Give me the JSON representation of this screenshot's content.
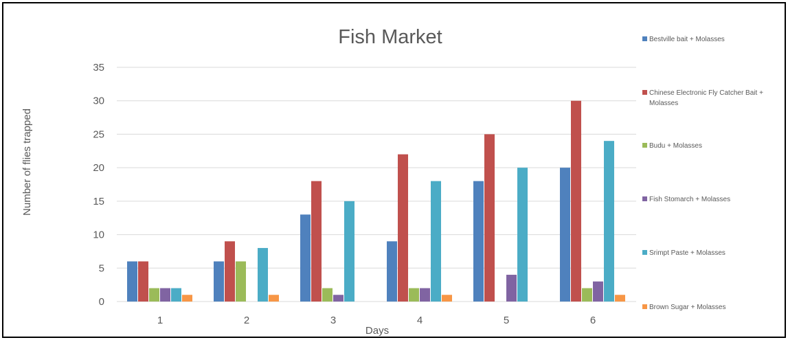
{
  "chart_data": {
    "type": "bar",
    "title": "Fish Market",
    "xlabel": "Days",
    "ylabel": "Number of flies trapped",
    "categories": [
      "1",
      "2",
      "3",
      "4",
      "5",
      "6"
    ],
    "ylim": [
      0,
      35
    ],
    "yticks": [
      0,
      5,
      10,
      15,
      20,
      25,
      30,
      35
    ],
    "grid": "horizontal",
    "legend_position": "right",
    "series": [
      {
        "name": "Bestville bait + Molasses",
        "legend_lines": [
          "Bestville bait + Molasses"
        ],
        "color": "#4f81bd",
        "values": [
          6,
          6,
          13,
          9,
          18,
          20
        ]
      },
      {
        "name": "Chinese Electronic Fly Catcher Bait + Molasses",
        "legend_lines": [
          "Chinese Electronic Fly Catcher Bait +",
          "Molasses"
        ],
        "color": "#c0504d",
        "values": [
          6,
          9,
          18,
          22,
          25,
          30
        ]
      },
      {
        "name": "Budu + Molasses",
        "legend_lines": [
          "Budu  + Molasses"
        ],
        "color": "#9bbb59",
        "values": [
          2,
          6,
          2,
          2,
          0,
          2
        ]
      },
      {
        "name": "Fish Stomarch + Molasses",
        "legend_lines": [
          "Fish Stomarch + Molasses"
        ],
        "color": "#8064a2",
        "values": [
          2,
          0,
          1,
          2,
          4,
          3
        ]
      },
      {
        "name": "Srimpt Paste + Molasses",
        "legend_lines": [
          "Srimpt Paste + Molasses"
        ],
        "color": "#4bacc6",
        "values": [
          2,
          8,
          15,
          18,
          20,
          24
        ]
      },
      {
        "name": "Brown Sugar + Molasses",
        "legend_lines": [
          "Brown Sugar + Molasses"
        ],
        "color": "#f79646",
        "values": [
          1,
          1,
          0,
          1,
          0,
          1
        ]
      }
    ],
    "colors": {
      "gridline": "#d9d9d9",
      "axis_line": "#d9d9d9",
      "text": "#595959",
      "frame": "#000000"
    }
  }
}
